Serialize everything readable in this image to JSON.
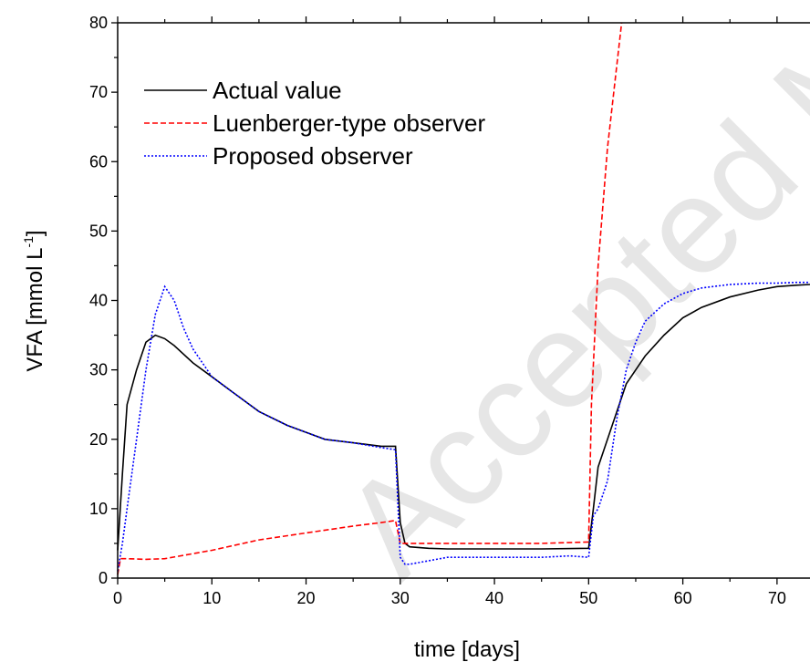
{
  "watermark": "Accepted Manuscript",
  "chart_data": {
    "type": "line",
    "title": "",
    "xlabel": "time [days]",
    "ylabel_main": "VFA [mmol L",
    "ylabel_sup": "-1",
    "ylabel_tail": "]",
    "xlim": [
      0,
      73.5
    ],
    "ylim": [
      0,
      80
    ],
    "x_ticks": [
      0,
      10,
      20,
      30,
      40,
      50,
      60,
      70
    ],
    "y_ticks": [
      0,
      10,
      20,
      30,
      40,
      50,
      60,
      70,
      80
    ],
    "grid": false,
    "legend_position": "top-left",
    "series": [
      {
        "name": "Actual value",
        "color": "#000000",
        "style": "solid",
        "x": [
          0,
          0.5,
          1,
          2,
          3,
          4,
          5,
          6,
          8,
          10,
          12,
          15,
          18,
          20,
          22,
          25,
          28,
          29.5,
          30,
          30.5,
          31,
          33,
          35,
          40,
          45,
          50,
          50.5,
          51,
          52,
          53,
          54,
          55,
          56,
          58,
          60,
          62,
          65,
          68,
          70,
          72,
          73.5
        ],
        "y": [
          4,
          15,
          25,
          30,
          34,
          35,
          34.5,
          33.5,
          31,
          29,
          27,
          24,
          22,
          21,
          20,
          19.5,
          19,
          19,
          8,
          5,
          4.5,
          4.3,
          4.2,
          4.2,
          4.2,
          4.3,
          10,
          16,
          20,
          24,
          28,
          30,
          32,
          35,
          37.5,
          39,
          40.5,
          41.5,
          42,
          42.2,
          42.3
        ]
      },
      {
        "name": "Luenberger-type observer",
        "color": "#ff0000",
        "style": "dashed",
        "x": [
          0,
          0.3,
          1,
          3,
          5,
          10,
          15,
          20,
          25,
          28,
          29.5,
          30,
          31,
          35,
          40,
          45,
          50,
          50.3,
          51,
          52,
          53,
          53.5
        ],
        "y": [
          0.5,
          2.8,
          2.8,
          2.7,
          2.8,
          4,
          5.5,
          6.5,
          7.5,
          8,
          8.3,
          5,
          5,
          5,
          5,
          5,
          5.2,
          25,
          45,
          62,
          74,
          80
        ]
      },
      {
        "name": "Proposed observer",
        "color": "#0000ff",
        "style": "dotted",
        "x": [
          0,
          0.5,
          1,
          2,
          3,
          4,
          5,
          6,
          7,
          8,
          10,
          12,
          15,
          18,
          20,
          22,
          25,
          28,
          29.5,
          30,
          30.5,
          31,
          33,
          35,
          37,
          40,
          43,
          45,
          48,
          50,
          50.5,
          51,
          52,
          53,
          54,
          55,
          56,
          58,
          60,
          62,
          65,
          68,
          70,
          72,
          73.5
        ],
        "y": [
          1,
          5,
          10,
          20,
          30,
          38,
          42,
          40,
          36,
          33,
          29,
          27,
          24,
          22,
          21,
          20,
          19.5,
          18.8,
          18.5,
          3,
          2,
          2,
          2.5,
          3,
          3,
          3,
          3,
          3,
          3.2,
          3,
          9,
          10,
          14,
          23,
          30,
          34,
          37,
          39.5,
          41,
          41.8,
          42.3,
          42.5,
          42.5,
          42.6,
          42.6
        ]
      }
    ]
  }
}
